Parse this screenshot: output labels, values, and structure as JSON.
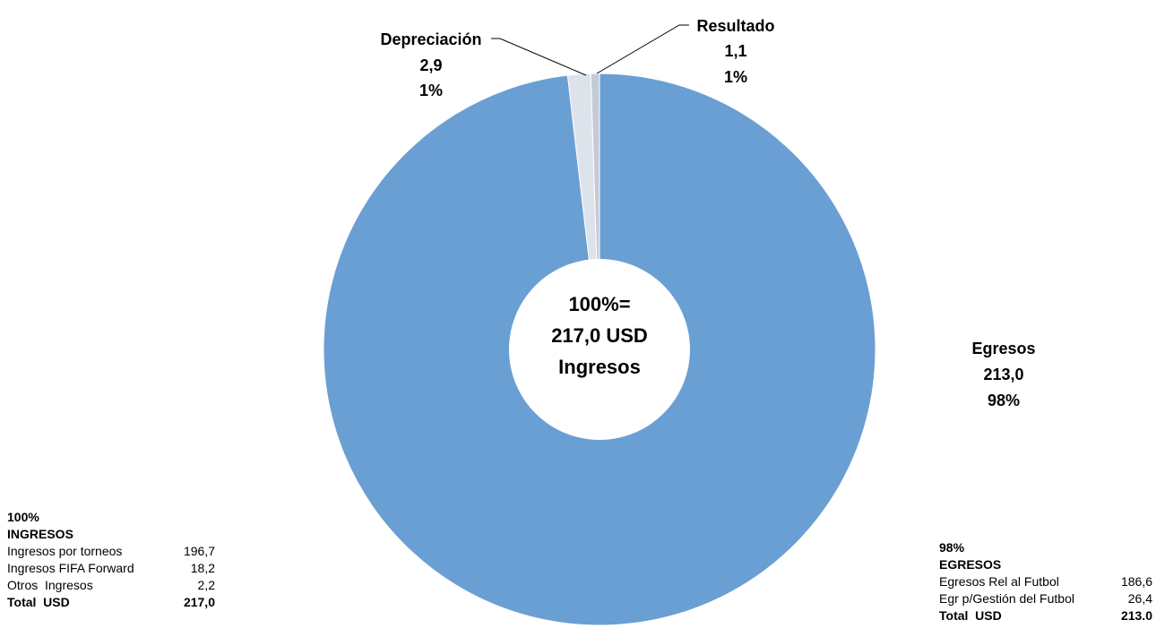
{
  "chart_data": {
    "type": "pie",
    "variant": "donut",
    "slices": [
      {
        "label": "Egresos",
        "value": 213.0,
        "value_label": "213,0",
        "pct_label": "98%",
        "color": "#6a9fd4"
      },
      {
        "label": "Depreciación",
        "value": 2.9,
        "value_label": "2,9",
        "pct_label": "1%",
        "color": "#dde3ea"
      },
      {
        "label": "Resultado",
        "value": 1.1,
        "value_label": "1,1",
        "pct_label": "1%",
        "color": "#c3ccd6"
      }
    ],
    "center_text": [
      "100%=",
      "217,0  USD",
      "Ingresos"
    ]
  },
  "ingresos_box": {
    "pct": "100%",
    "title": "INGRESOS",
    "rows": [
      {
        "label": "Ingresos por torneos",
        "value": "196,7"
      },
      {
        "label": "Ingresos FIFA Forward",
        "value": "18,2"
      },
      {
        "label": "Otros  Ingresos",
        "value": "2,2"
      }
    ],
    "total_label": "Total  USD",
    "total_value": "217,0"
  },
  "egresos_box": {
    "pct": "98%",
    "title": "EGRESOS",
    "rows": [
      {
        "label": "Egresos Rel al Futbol",
        "value": "186,6"
      },
      {
        "label": "Egr p/Gestión del Futbol",
        "value": "26,4"
      }
    ],
    "total_label": "Total  USD",
    "total_value": "213.0"
  }
}
